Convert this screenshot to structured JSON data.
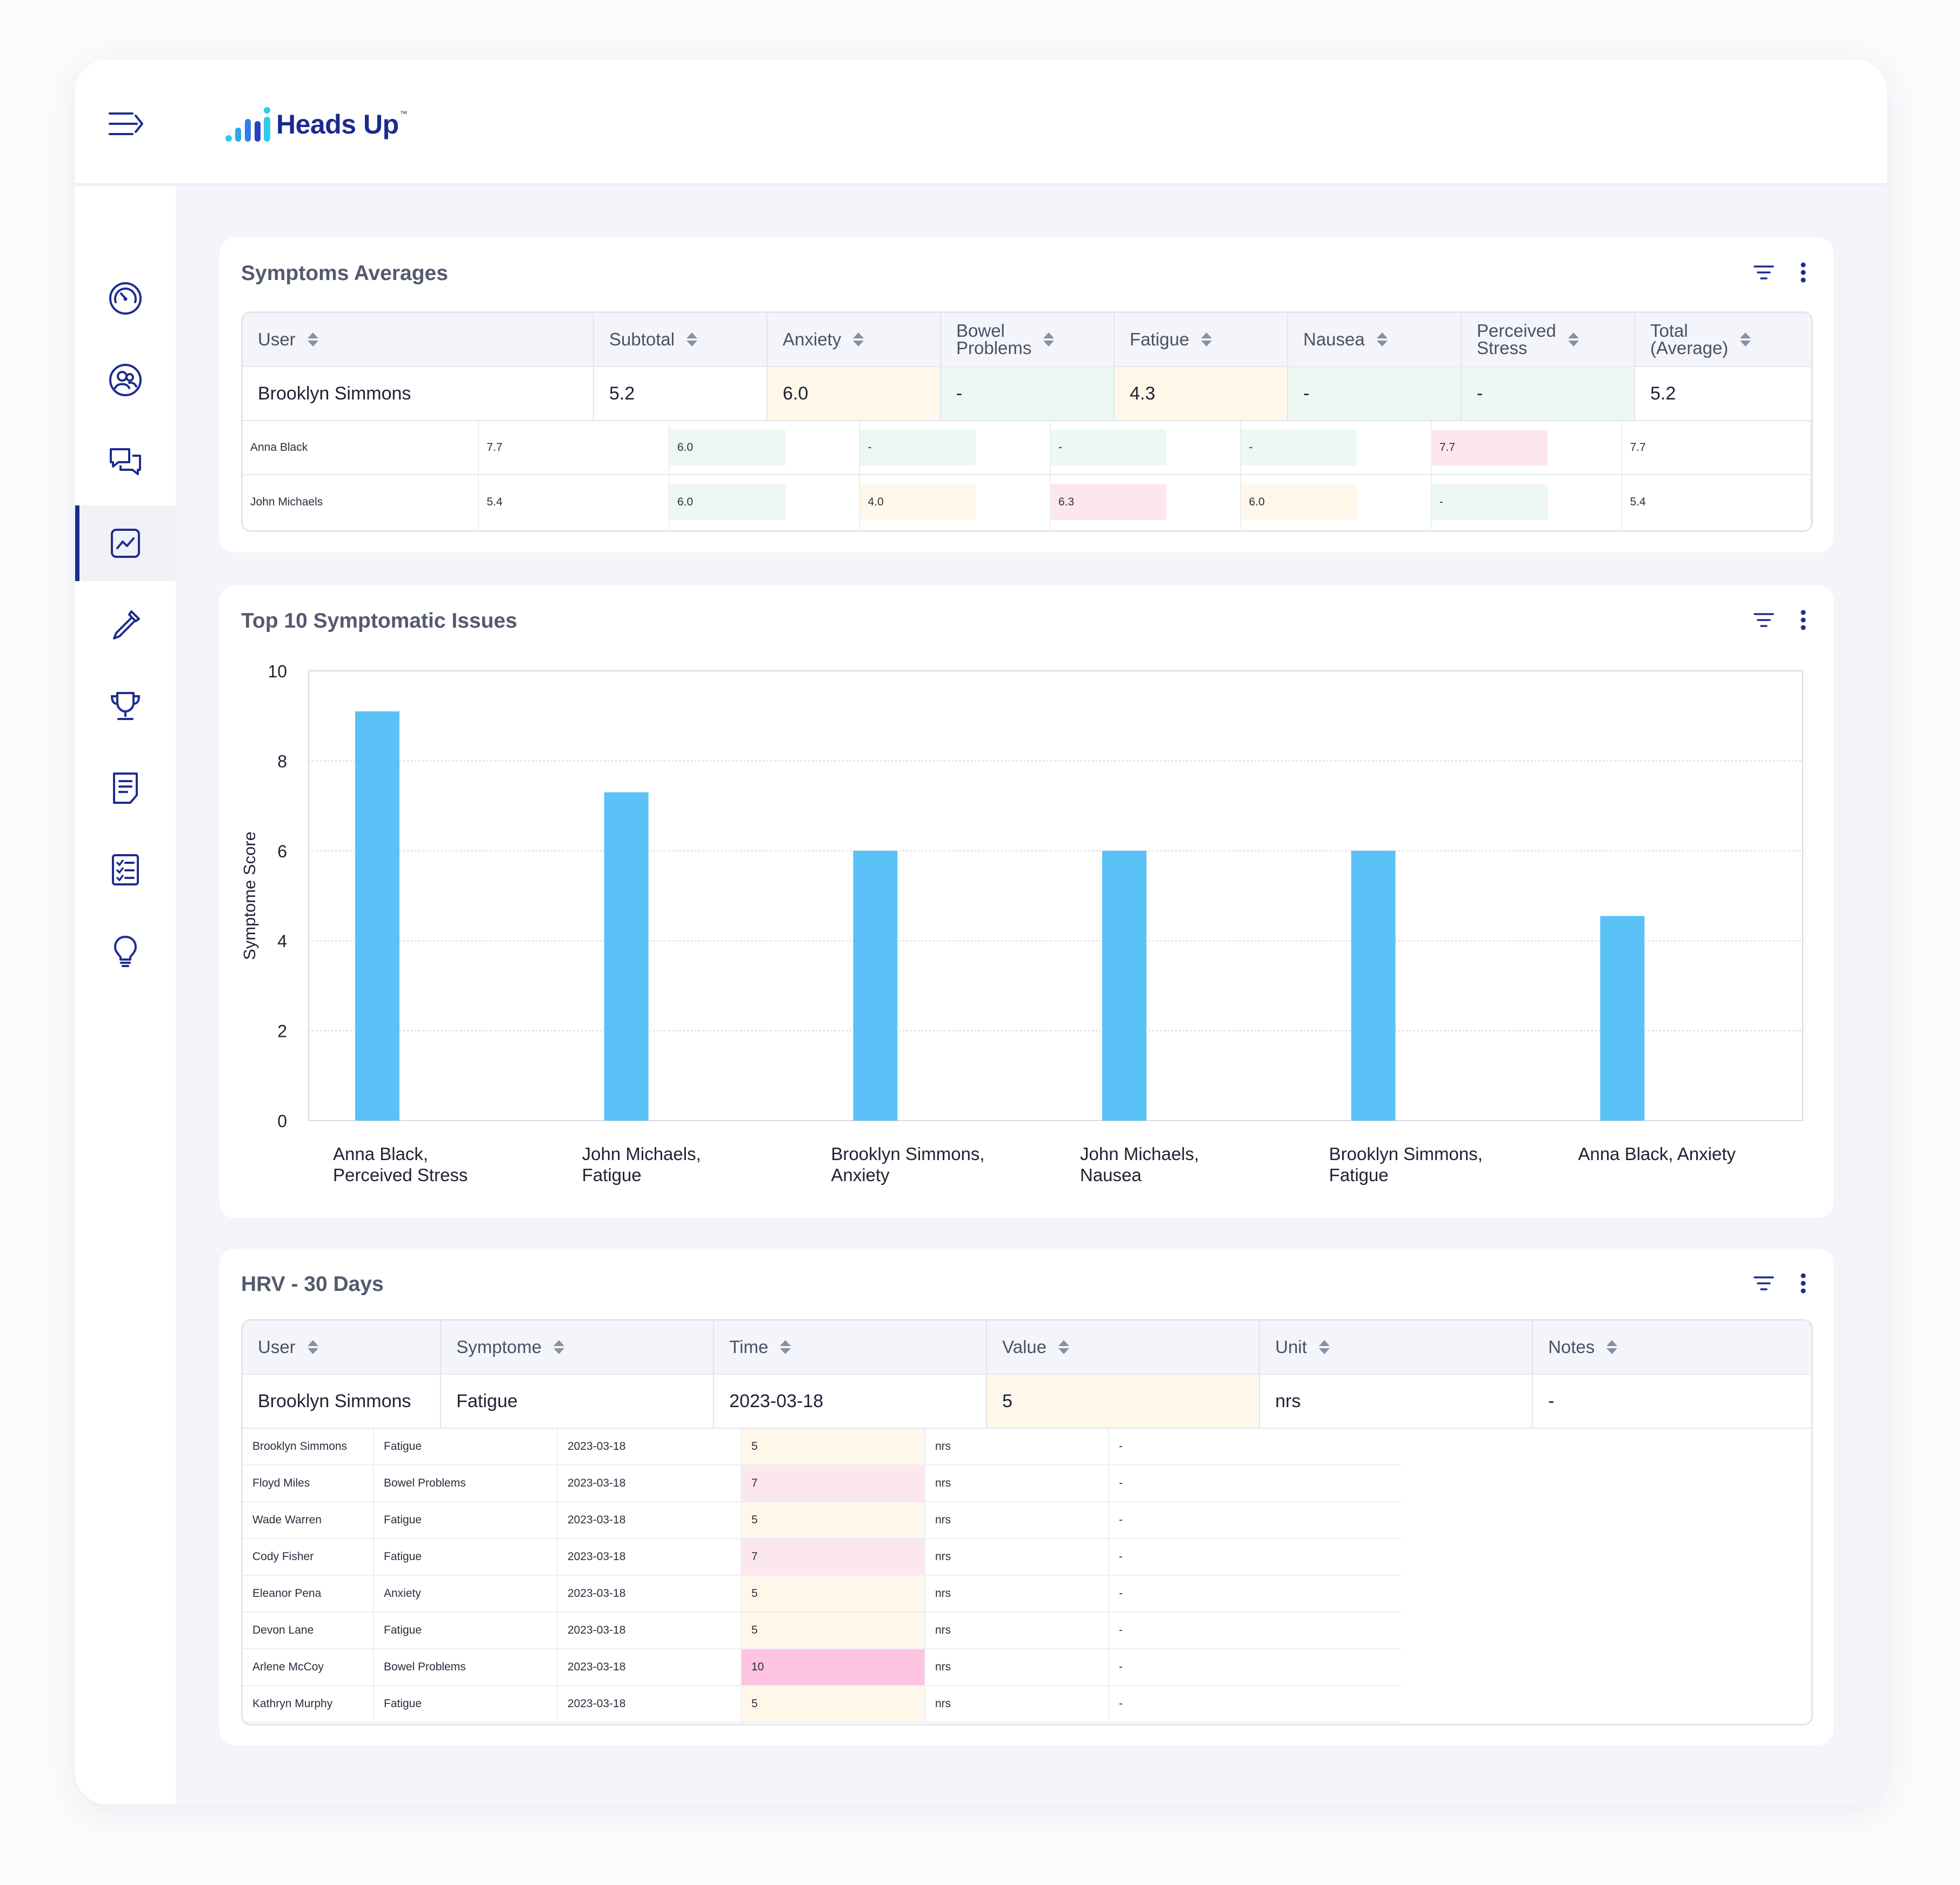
{
  "app": {
    "name": "Heads Up",
    "trademark": "™"
  },
  "sidebar": {
    "items": [
      {
        "icon": "gauge-icon"
      },
      {
        "icon": "users-icon"
      },
      {
        "icon": "chat-icon"
      },
      {
        "icon": "analytics-icon",
        "active": true
      },
      {
        "icon": "dropper-icon"
      },
      {
        "icon": "trophy-icon"
      },
      {
        "icon": "document-icon"
      },
      {
        "icon": "checklist-icon"
      },
      {
        "icon": "lightbulb-icon"
      }
    ]
  },
  "colors": {
    "brand": "#1b2a8f",
    "accent_cyan": "#2fc9ef",
    "bar": "#5bc2f7",
    "green_cell": "#ecf8f1",
    "yellow_cell": "#fff8ea",
    "pink_cell": "#fde7ef",
    "hotpink_cell": "#fdc3e0"
  },
  "symptoms_averages": {
    "title": "Symptoms Averages",
    "columns": [
      "User",
      "Subtotal",
      "Anxiety",
      "Bowel Problems",
      "Fatigue",
      "Nausea",
      "Perceived Stress",
      "Total (Average)"
    ],
    "main_row": [
      "Brooklyn Simmons",
      "5.2",
      "6.0",
      "-",
      "4.3",
      "-",
      "-",
      "5.2"
    ],
    "main_row_colors": [
      "",
      "",
      "yellow",
      "green",
      "yellow",
      "green",
      "green",
      ""
    ],
    "rows": [
      {
        "cells": [
          "Anna Black",
          "7.7",
          "6.0",
          "-",
          "-",
          "-",
          "7.7",
          "7.7"
        ],
        "colors": [
          "",
          "",
          "green",
          "green",
          "green",
          "green",
          "pink",
          ""
        ]
      },
      {
        "cells": [
          "John Michaels",
          "5.4",
          "6.0",
          "4.0",
          "6.3",
          "6.0",
          "-",
          "5.4"
        ],
        "colors": [
          "",
          "",
          "green",
          "yellow",
          "pink",
          "yellow",
          "green",
          ""
        ]
      }
    ]
  },
  "top_issues": {
    "title": "Top 10 Symptomatic Issues",
    "chart_data": {
      "type": "bar",
      "categories": [
        [
          "Anna Black,",
          "Perceived Stress"
        ],
        [
          "John Michaels,",
          "Fatigue"
        ],
        [
          "Brooklyn Simmons,",
          "Anxiety"
        ],
        [
          "John Michaels,",
          "Nausea"
        ],
        [
          "Brooklyn Simmons,",
          "Fatigue"
        ],
        [
          "Anna Black, Anxiety"
        ]
      ],
      "values": [
        9.1,
        7.3,
        6.0,
        6.0,
        6.0,
        4.55
      ],
      "ylabel": "Symptome Score",
      "ylim": [
        0,
        10
      ],
      "yticks": [
        "0",
        "2",
        "4",
        "6",
        "8",
        "10"
      ],
      "grid": true
    }
  },
  "hrv": {
    "title": "HRV - 30 Days",
    "columns": [
      "User",
      "Symptome",
      "Time",
      "Value",
      "Unit",
      "Notes"
    ],
    "main_row": [
      "Brooklyn Simmons",
      "Fatigue",
      "2023-03-18",
      "5",
      "nrs",
      "-"
    ],
    "rows": [
      {
        "cells": [
          "Brooklyn Simmons",
          "Fatigue",
          "2023-03-18",
          "5",
          "nrs",
          "-"
        ],
        "value_color": "yellow"
      },
      {
        "cells": [
          "Floyd Miles",
          "Bowel Problems",
          "2023-03-18",
          "7",
          "nrs",
          "-"
        ],
        "value_color": "pink"
      },
      {
        "cells": [
          "Wade Warren",
          "Fatigue",
          "2023-03-18",
          "5",
          "nrs",
          "-"
        ],
        "value_color": "yellow"
      },
      {
        "cells": [
          "Cody Fisher",
          "Fatigue",
          "2023-03-18",
          "7",
          "nrs",
          "-"
        ],
        "value_color": "pink"
      },
      {
        "cells": [
          "Eleanor Pena",
          "Anxiety",
          "2023-03-18",
          "5",
          "nrs",
          "-"
        ],
        "value_color": "yellow"
      },
      {
        "cells": [
          "Devon Lane",
          "Fatigue",
          "2023-03-18",
          "5",
          "nrs",
          "-"
        ],
        "value_color": "yellow"
      },
      {
        "cells": [
          "Arlene McCoy",
          "Bowel Problems",
          "2023-03-18",
          "10",
          "nrs",
          "-"
        ],
        "value_color": "hotpink"
      },
      {
        "cells": [
          "Kathryn Murphy",
          "Fatigue",
          "2023-03-18",
          "5",
          "nrs",
          "-"
        ],
        "value_color": "yellow"
      }
    ]
  }
}
